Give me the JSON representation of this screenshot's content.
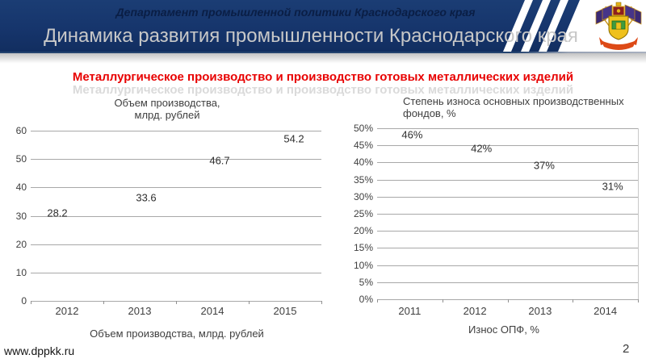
{
  "header": {
    "department": "Департамент промышленной политики Краснодарского края",
    "title": "Динамика развития промышленности Краснодарского края",
    "icons": {
      "emblem": "krasnodar-krai-coat-of-arms",
      "stripes": "diagonal-stripes-decoration"
    }
  },
  "subtitle": {
    "text": "Металлургическое производство и производство готовых металлических изделий",
    "ghost_text": "Металлургическое производство и производство готовых металлических изделий"
  },
  "footer": {
    "website": "www.dppkk.ru",
    "page_number": "2"
  },
  "colors": {
    "header_bg": "#17366d",
    "title_gray": "#c8c8c8",
    "accent_red": "#e80000",
    "ghost_gray": "#dadada",
    "gridline": "#a8a8a8",
    "chart_text": "#3f3f3f"
  },
  "chart_data": [
    {
      "id": "production",
      "type": "line",
      "title": "Объем производства,\nмлрд. рублей",
      "categories": [
        "2012",
        "2013",
        "2014",
        "2015"
      ],
      "values": [
        28.2,
        33.6,
        46.7,
        54.2
      ],
      "point_labels": [
        "28.2",
        "33.6",
        "46.7",
        "54.2"
      ],
      "ylim": [
        0,
        60
      ],
      "y_tick_step": 10,
      "y_tick_labels": [
        "0",
        "10",
        "20",
        "30",
        "40",
        "50",
        "60"
      ],
      "xlabel": "Объем производства, млрд. рублей",
      "ylabel": "",
      "grid": true,
      "series_line_visible": false,
      "legend_position": "bottom"
    },
    {
      "id": "wear",
      "type": "line",
      "title": "Степень износа основных производственных\nфондов, %",
      "categories": [
        "2011",
        "2012",
        "2013",
        "2014"
      ],
      "values": [
        46,
        42,
        37,
        31
      ],
      "point_labels": [
        "46%",
        "42%",
        "37%",
        "31%"
      ],
      "ylim": [
        0,
        50
      ],
      "y_tick_step": 5,
      "y_tick_labels": [
        "0%",
        "5%",
        "10%",
        "15%",
        "20%",
        "25%",
        "30%",
        "35%",
        "40%",
        "45%",
        "50%"
      ],
      "xlabel": "Износ ОПФ, %",
      "ylabel": "",
      "grid": true,
      "series_line_visible": false,
      "legend_position": "bottom"
    }
  ]
}
